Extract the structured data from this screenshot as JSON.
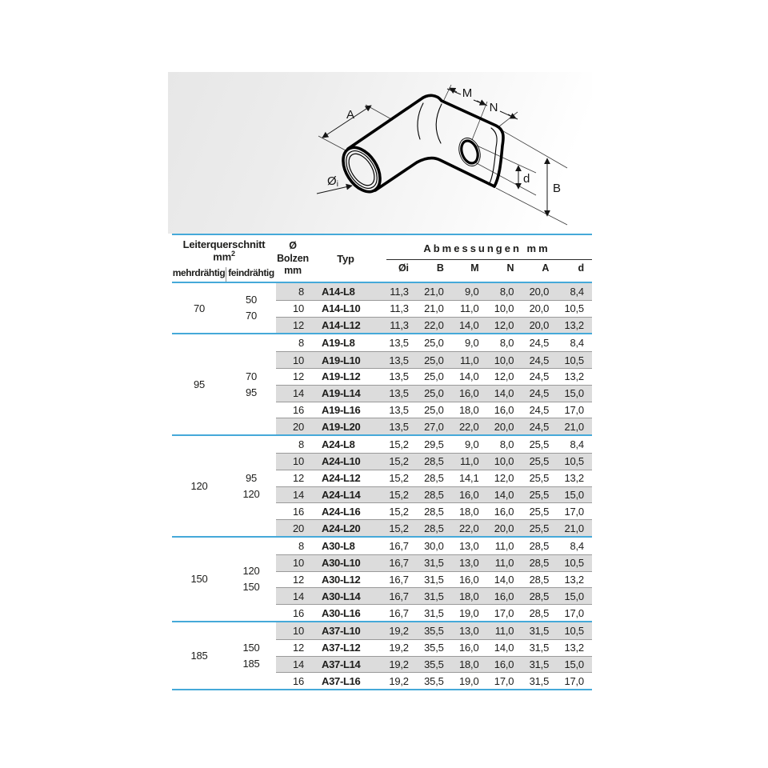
{
  "colors": {
    "accent_cyan": "#45a9d9",
    "row_band_gray": "#dcdcdc",
    "row_separator_gray": "#9a9a9a",
    "text_black": "#1d1d1b"
  },
  "drawing": {
    "labels": {
      "a": "A",
      "m": "M",
      "n": "N",
      "oi_symbol": "Ø",
      "oi_sub": "i",
      "d": "d",
      "b": "B"
    }
  },
  "table": {
    "header": {
      "leiterquerschnitt": "Leiterquerschnitt",
      "unit": "mm",
      "unit_sup": "2",
      "col_mehrdraehtig": "mehrdrähtig",
      "col_feindraehtig": "feindrähtig",
      "bolzen_line1": "Ø",
      "bolzen_line2": "Bolzen",
      "bolzen_line3": "mm",
      "typ": "Typ",
      "abmessungen": "Abmessungen mm",
      "dims": [
        "Øi",
        "B",
        "M",
        "N",
        "A",
        "d"
      ]
    },
    "groups": [
      {
        "mehrdraehtig": "70",
        "feindraehtig": [
          "50",
          "70"
        ],
        "rows": [
          [
            "8",
            "A14-L8",
            "11,3",
            "21,0",
            "9,0",
            "8,0",
            "20,0",
            "8,4"
          ],
          [
            "10",
            "A14-L10",
            "11,3",
            "21,0",
            "11,0",
            "10,0",
            "20,0",
            "10,5"
          ],
          [
            "12",
            "A14-L12",
            "11,3",
            "22,0",
            "14,0",
            "12,0",
            "20,0",
            "13,2"
          ]
        ]
      },
      {
        "mehrdraehtig": "95",
        "feindraehtig": [
          "70",
          "95"
        ],
        "rows": [
          [
            "8",
            "A19-L8",
            "13,5",
            "25,0",
            "9,0",
            "8,0",
            "24,5",
            "8,4"
          ],
          [
            "10",
            "A19-L10",
            "13,5",
            "25,0",
            "11,0",
            "10,0",
            "24,5",
            "10,5"
          ],
          [
            "12",
            "A19-L12",
            "13,5",
            "25,0",
            "14,0",
            "12,0",
            "24,5",
            "13,2"
          ],
          [
            "14",
            "A19-L14",
            "13,5",
            "25,0",
            "16,0",
            "14,0",
            "24,5",
            "15,0"
          ],
          [
            "16",
            "A19-L16",
            "13,5",
            "25,0",
            "18,0",
            "16,0",
            "24,5",
            "17,0"
          ],
          [
            "20",
            "A19-L20",
            "13,5",
            "27,0",
            "22,0",
            "20,0",
            "24,5",
            "21,0"
          ]
        ]
      },
      {
        "mehrdraehtig": "120",
        "feindraehtig": [
          "95",
          "120"
        ],
        "rows": [
          [
            "8",
            "A24-L8",
            "15,2",
            "29,5",
            "9,0",
            "8,0",
            "25,5",
            "8,4"
          ],
          [
            "10",
            "A24-L10",
            "15,2",
            "28,5",
            "11,0",
            "10,0",
            "25,5",
            "10,5"
          ],
          [
            "12",
            "A24-L12",
            "15,2",
            "28,5",
            "14,1",
            "12,0",
            "25,5",
            "13,2"
          ],
          [
            "14",
            "A24-L14",
            "15,2",
            "28,5",
            "16,0",
            "14,0",
            "25,5",
            "15,0"
          ],
          [
            "16",
            "A24-L16",
            "15,2",
            "28,5",
            "18,0",
            "16,0",
            "25,5",
            "17,0"
          ],
          [
            "20",
            "A24-L20",
            "15,2",
            "28,5",
            "22,0",
            "20,0",
            "25,5",
            "21,0"
          ]
        ]
      },
      {
        "mehrdraehtig": "150",
        "feindraehtig": [
          "120",
          "150"
        ],
        "rows": [
          [
            "8",
            "A30-L8",
            "16,7",
            "30,0",
            "13,0",
            "11,0",
            "28,5",
            "8,4"
          ],
          [
            "10",
            "A30-L10",
            "16,7",
            "31,5",
            "13,0",
            "11,0",
            "28,5",
            "10,5"
          ],
          [
            "12",
            "A30-L12",
            "16,7",
            "31,5",
            "16,0",
            "14,0",
            "28,5",
            "13,2"
          ],
          [
            "14",
            "A30-L14",
            "16,7",
            "31,5",
            "18,0",
            "16,0",
            "28,5",
            "15,0"
          ],
          [
            "16",
            "A30-L16",
            "16,7",
            "31,5",
            "19,0",
            "17,0",
            "28,5",
            "17,0"
          ]
        ]
      },
      {
        "mehrdraehtig": "185",
        "feindraehtig": [
          "150",
          "185"
        ],
        "rows": [
          [
            "10",
            "A37-L10",
            "19,2",
            "35,5",
            "13,0",
            "11,0",
            "31,5",
            "10,5"
          ],
          [
            "12",
            "A37-L12",
            "19,2",
            "35,5",
            "16,0",
            "14,0",
            "31,5",
            "13,2"
          ],
          [
            "14",
            "A37-L14",
            "19,2",
            "35,5",
            "18,0",
            "16,0",
            "31,5",
            "15,0"
          ],
          [
            "16",
            "A37-L16",
            "19,2",
            "35,5",
            "19,0",
            "17,0",
            "31,5",
            "17,0"
          ]
        ]
      }
    ]
  }
}
